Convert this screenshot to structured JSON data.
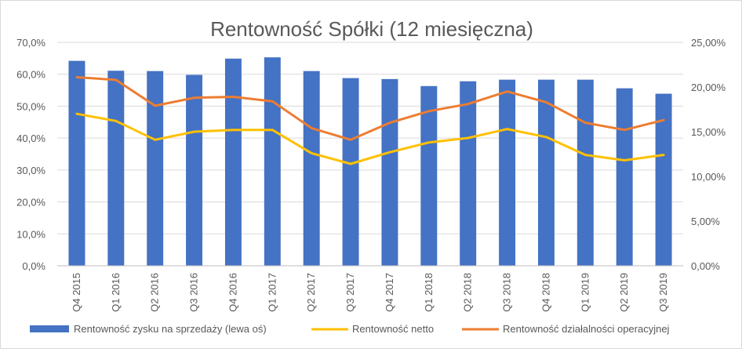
{
  "chart_data": {
    "type": "bar",
    "title": "Rentowność Spółki (12 miesięczna)",
    "categories": [
      "Q4 2015",
      "Q1 2016",
      "Q2 2016",
      "Q3 2016",
      "Q4 2016",
      "Q1 2017",
      "Q2 2017",
      "Q3 2017",
      "Q4 2017",
      "Q1 2018",
      "Q2 2018",
      "Q3 2018",
      "Q4 2018",
      "Q1 2019",
      "Q2 2019",
      "Q3 2019"
    ],
    "y_left": {
      "ylim": [
        0,
        70
      ],
      "ticks": [
        "0,0%",
        "10,0%",
        "20,0%",
        "30,0%",
        "40,0%",
        "50,0%",
        "60,0%",
        "70,0%"
      ]
    },
    "y_right": {
      "ylim": [
        0,
        25
      ],
      "ticks": [
        "0,00%",
        "5,00%",
        "10,00%",
        "15,00%",
        "20,00%",
        "25,00%"
      ]
    },
    "series": [
      {
        "name": "Rentowność zysku na sprzedaży (lewa oś)",
        "type": "bar",
        "axis": "left",
        "color": "#4472c4",
        "values": [
          64.2,
          61.1,
          61.0,
          59.8,
          64.9,
          65.3,
          61.0,
          58.8,
          58.5,
          56.3,
          57.8,
          58.3,
          58.3,
          58.3,
          55.6,
          53.9
        ]
      },
      {
        "name": "Rentowność netto",
        "type": "line",
        "axis": "right",
        "color": "#ffc000",
        "values": [
          17.0,
          16.2,
          14.1,
          15.0,
          15.2,
          15.2,
          12.6,
          11.4,
          12.7,
          13.8,
          14.3,
          15.3,
          14.4,
          12.4,
          11.8,
          12.4
        ]
      },
      {
        "name": "Rentowność działalności operacyjnej",
        "type": "line",
        "axis": "right",
        "color": "#ed7d31",
        "values": [
          21.1,
          20.8,
          17.9,
          18.8,
          18.9,
          18.4,
          15.4,
          14.1,
          16.0,
          17.3,
          18.1,
          19.5,
          18.3,
          16.0,
          15.2,
          16.3
        ]
      }
    ],
    "grid": true,
    "legend_position": "bottom"
  }
}
